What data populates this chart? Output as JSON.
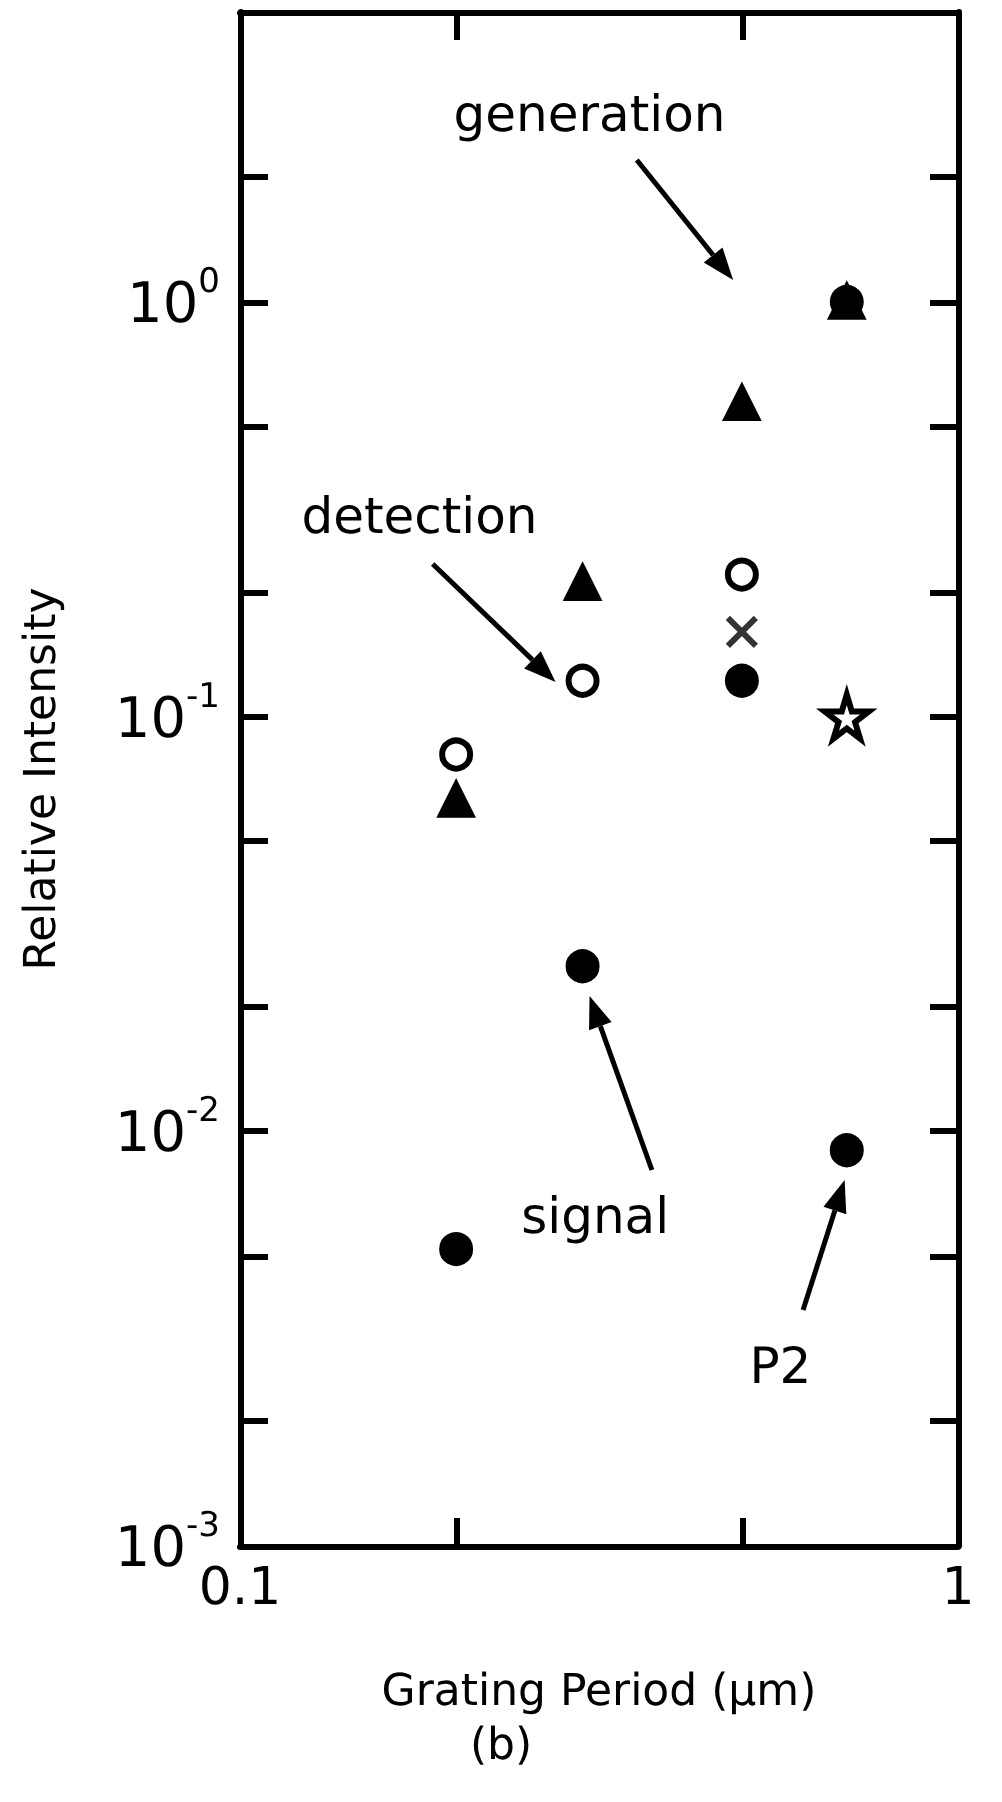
{
  "chart_data": {
    "type": "scatter",
    "title": "(b)",
    "xlabel": "Grating Period (μm)",
    "ylabel": "Relative Intensity",
    "log": "xy",
    "grid": false,
    "xlim": [
      0.1,
      1
    ],
    "ylim": [
      0.001,
      5
    ],
    "xticks": [
      {
        "value": 0.1,
        "label": "0.1"
      },
      {
        "value": 0.2,
        "label": null
      },
      {
        "value": 0.5,
        "label": null
      },
      {
        "value": 1,
        "label": "1"
      }
    ],
    "yticks": [
      {
        "value": 0.001,
        "label": "10$^{-3}$"
      },
      {
        "value": 0.002,
        "label": null
      },
      {
        "value": 0.005,
        "label": null
      },
      {
        "value": 0.01,
        "label": "10$^{-2}$"
      },
      {
        "value": 0.02,
        "label": null
      },
      {
        "value": 0.05,
        "label": null
      },
      {
        "value": 0.1,
        "label": "10$^{-1}$"
      },
      {
        "value": 0.2,
        "label": null
      },
      {
        "value": 0.5,
        "label": null
      },
      {
        "value": 1,
        "label": "10$^{0}$"
      },
      {
        "value": 2,
        "label": null
      }
    ],
    "series": [
      {
        "color": "#000000",
        "marker": "triangle",
        "x": [
          0.2,
          0.3,
          0.5,
          0.7
        ],
        "values": [
          0.063,
          0.21,
          0.57,
          1
        ]
      },
      {
        "color": "#ffffff",
        "marker": "circle",
        "x": [
          0.2,
          0.3,
          0.5
        ],
        "values": [
          0.081,
          0.122,
          0.22
        ]
      },
      {
        "color": "#000000",
        "marker": "circle",
        "x": [
          0.2,
          0.3,
          0.5,
          0.7,
          0.7
        ],
        "values": [
          0.0052,
          0.025,
          0.122,
          1,
          0.009
        ]
      },
      {
        "color": "#000000",
        "marker": "cross",
        "x": [
          0.5
        ],
        "values": [
          0.16
        ]
      },
      {
        "color": "#ffffff",
        "marker": "star",
        "x": [
          0.7
        ],
        "values": [
          0.1
        ]
      }
    ],
    "annotations": [
      "generation",
      "detection",
      "signal",
      "P2"
    ]
  }
}
